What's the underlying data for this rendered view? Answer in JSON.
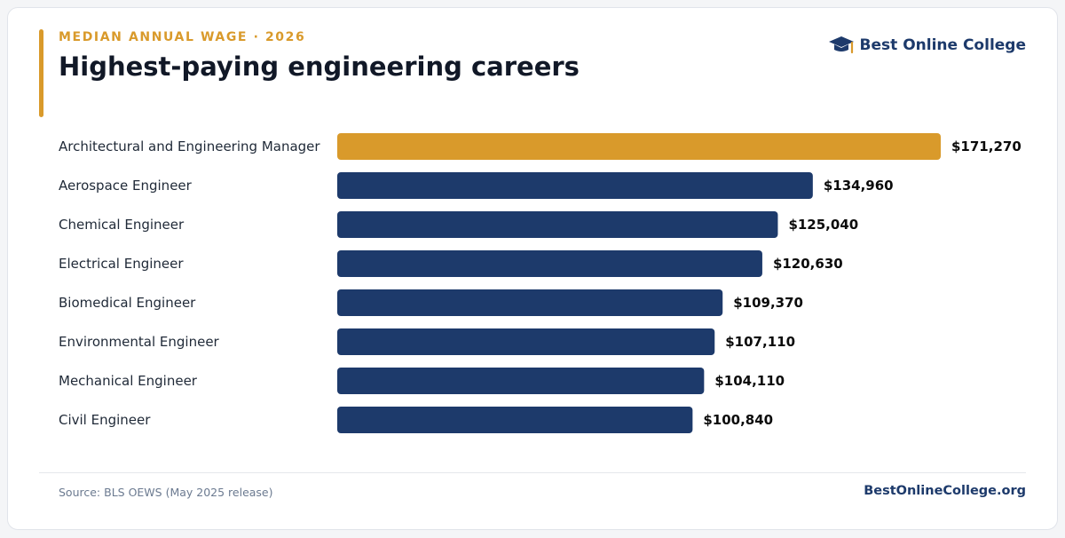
{
  "header": {
    "eyebrow": "MEDIAN ANNUAL WAGE · 2026",
    "title": "Highest-paying engineering careers",
    "brand_name": "Best Online College",
    "brand_icon": "graduation-cap-icon"
  },
  "footer": {
    "source": "Source: BLS OEWS (May 2025 release)",
    "site": "BestOnlineCollege.org"
  },
  "colors": {
    "accent": "#d99a2b",
    "bar": "#1d3a6b",
    "highlight_bar": "#d99a2b",
    "label": "#1f2937",
    "value": "#0b0b0b"
  },
  "chart_data": {
    "type": "bar",
    "orientation": "horizontal",
    "categories": [
      "Architectural and Engineering Manager",
      "Aerospace Engineer",
      "Chemical Engineer",
      "Electrical Engineer",
      "Biomedical Engineer",
      "Environmental Engineer",
      "Mechanical Engineer",
      "Civil Engineer"
    ],
    "values": [
      171270,
      134960,
      125040,
      120630,
      109370,
      107110,
      104110,
      100840
    ],
    "value_labels": [
      "$171,270",
      "$134,960",
      "$125,040",
      "$120,630",
      "$109,370",
      "$107,110",
      "$104,110",
      "$100,840"
    ],
    "highlight_index": 0,
    "xlim": [
      0,
      171270
    ],
    "grid": false,
    "legend": "none"
  }
}
